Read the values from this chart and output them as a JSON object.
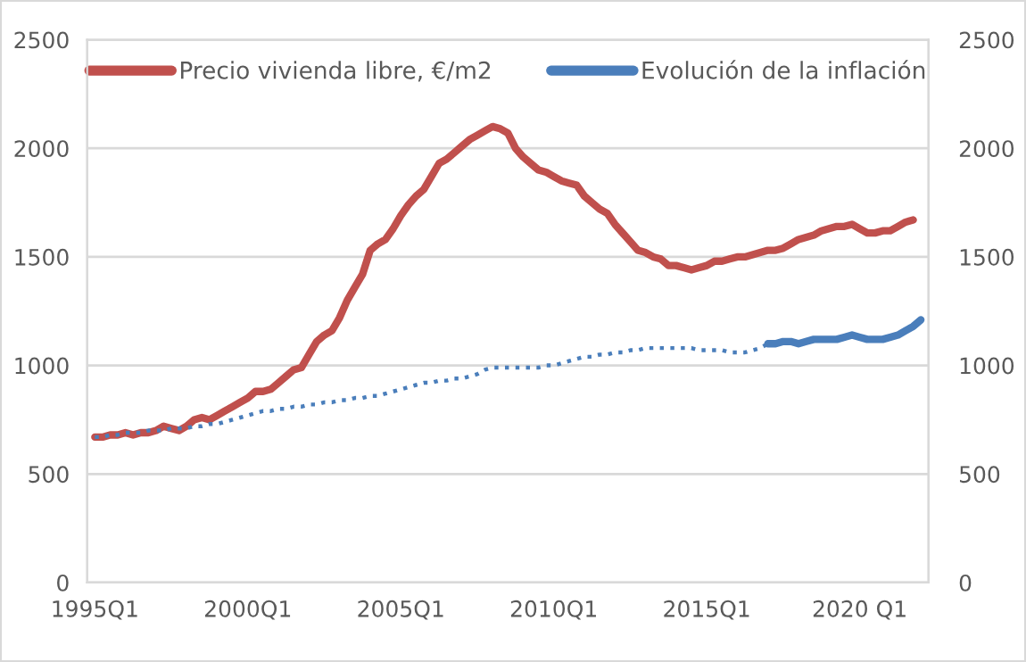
{
  "chart_data": {
    "type": "line",
    "categories": [
      "1995Q1",
      null,
      null,
      null,
      null,
      null,
      null,
      null,
      null,
      null,
      null,
      null,
      null,
      null,
      null,
      null,
      null,
      null,
      null,
      null,
      "2000Q1",
      null,
      null,
      null,
      null,
      null,
      null,
      null,
      null,
      null,
      null,
      null,
      null,
      null,
      null,
      null,
      null,
      null,
      null,
      null,
      "2005Q1",
      null,
      null,
      null,
      null,
      null,
      null,
      null,
      null,
      null,
      null,
      null,
      null,
      null,
      null,
      null,
      null,
      null,
      null,
      null,
      "2010Q1",
      null,
      null,
      null,
      null,
      null,
      null,
      null,
      null,
      null,
      null,
      null,
      null,
      null,
      null,
      null,
      null,
      null,
      null,
      null,
      "2015Q1",
      null,
      null,
      null,
      null,
      null,
      null,
      null,
      null,
      null,
      null,
      null,
      null,
      null,
      null,
      null,
      null,
      null,
      null,
      null,
      "2020 Q1",
      null,
      null,
      null,
      null,
      null,
      null,
      null,
      null
    ],
    "ylim": [
      0,
      2500
    ],
    "yticks": [
      0,
      500,
      1000,
      1500,
      2000,
      2500
    ],
    "y2lim": [
      0,
      2500
    ],
    "y2ticks": [
      0,
      500,
      1000,
      1500,
      2000,
      2500
    ],
    "grid": "y",
    "legend": "top",
    "marker": "none",
    "series": [
      {
        "name": "Precio vivienda libre, €/m2",
        "color": "#c0504d",
        "line_style": "solid",
        "values": [
          670,
          670,
          680,
          680,
          690,
          680,
          690,
          690,
          700,
          720,
          710,
          700,
          720,
          750,
          760,
          750,
          770,
          790,
          810,
          830,
          850,
          880,
          880,
          890,
          920,
          950,
          980,
          990,
          1050,
          1110,
          1140,
          1160,
          1220,
          1300,
          1360,
          1420,
          1530,
          1560,
          1580,
          1630,
          1690,
          1740,
          1780,
          1810,
          1870,
          1930,
          1950,
          1980,
          2010,
          2040,
          2060,
          2080,
          2100,
          2090,
          2070,
          2000,
          1960,
          1930,
          1900,
          1890,
          1870,
          1850,
          1840,
          1830,
          1780,
          1750,
          1720,
          1700,
          1650,
          1610,
          1570,
          1530,
          1520,
          1500,
          1490,
          1460,
          1460,
          1450,
          1440,
          1450,
          1460,
          1480,
          1480,
          1490,
          1500,
          1500,
          1510,
          1520,
          1530,
          1530,
          1540,
          1560,
          1580,
          1590,
          1600,
          1620,
          1630,
          1640,
          1640,
          1650,
          1630,
          1610,
          1610,
          1620,
          1620,
          1640,
          1660,
          1670,
          null
        ]
      },
      {
        "color": "#4a7ebb",
        "line_style": "dotted",
        "values": [
          670,
          670,
          680,
          680,
          690,
          690,
          690,
          700,
          700,
          700,
          710,
          710,
          710,
          720,
          720,
          730,
          730,
          740,
          750,
          760,
          770,
          780,
          790,
          790,
          800,
          800,
          810,
          810,
          820,
          820,
          830,
          830,
          840,
          840,
          850,
          850,
          860,
          860,
          870,
          880,
          890,
          900,
          910,
          920,
          920,
          930,
          930,
          940,
          940,
          950,
          960,
          980,
          990,
          990,
          990,
          990,
          990,
          990,
          990,
          1000,
          1000,
          1010,
          1020,
          1030,
          1040,
          1040,
          1050,
          1050,
          1060,
          1060,
          1070,
          1070,
          1080,
          1080,
          1080,
          1080,
          1080,
          1080,
          1080,
          1070,
          1070,
          1070,
          1070,
          1060,
          1060,
          1060,
          1070,
          1080,
          1100,
          null,
          null,
          null,
          null,
          null,
          null,
          null,
          null,
          null,
          null,
          null,
          null,
          null,
          null,
          null,
          null,
          null,
          null,
          null,
          null
        ]
      },
      {
        "name": "Evolución de la inflación",
        "color": "#4a7ebb",
        "line_style": "solid",
        "values": [
          null,
          null,
          null,
          null,
          null,
          null,
          null,
          null,
          null,
          null,
          null,
          null,
          null,
          null,
          null,
          null,
          null,
          null,
          null,
          null,
          null,
          null,
          null,
          null,
          null,
          null,
          null,
          null,
          null,
          null,
          null,
          null,
          null,
          null,
          null,
          null,
          null,
          null,
          null,
          null,
          null,
          null,
          null,
          null,
          null,
          null,
          null,
          null,
          null,
          null,
          null,
          null,
          null,
          null,
          null,
          null,
          null,
          null,
          null,
          null,
          null,
          null,
          null,
          null,
          null,
          null,
          null,
          null,
          null,
          null,
          null,
          null,
          null,
          null,
          null,
          null,
          null,
          null,
          null,
          null,
          null,
          null,
          null,
          null,
          null,
          null,
          null,
          null,
          1100,
          1100,
          1110,
          1110,
          1100,
          1110,
          1120,
          1120,
          1120,
          1120,
          1130,
          1140,
          1130,
          1120,
          1120,
          1120,
          1130,
          1140,
          1160,
          1180,
          1210
        ]
      }
    ]
  }
}
